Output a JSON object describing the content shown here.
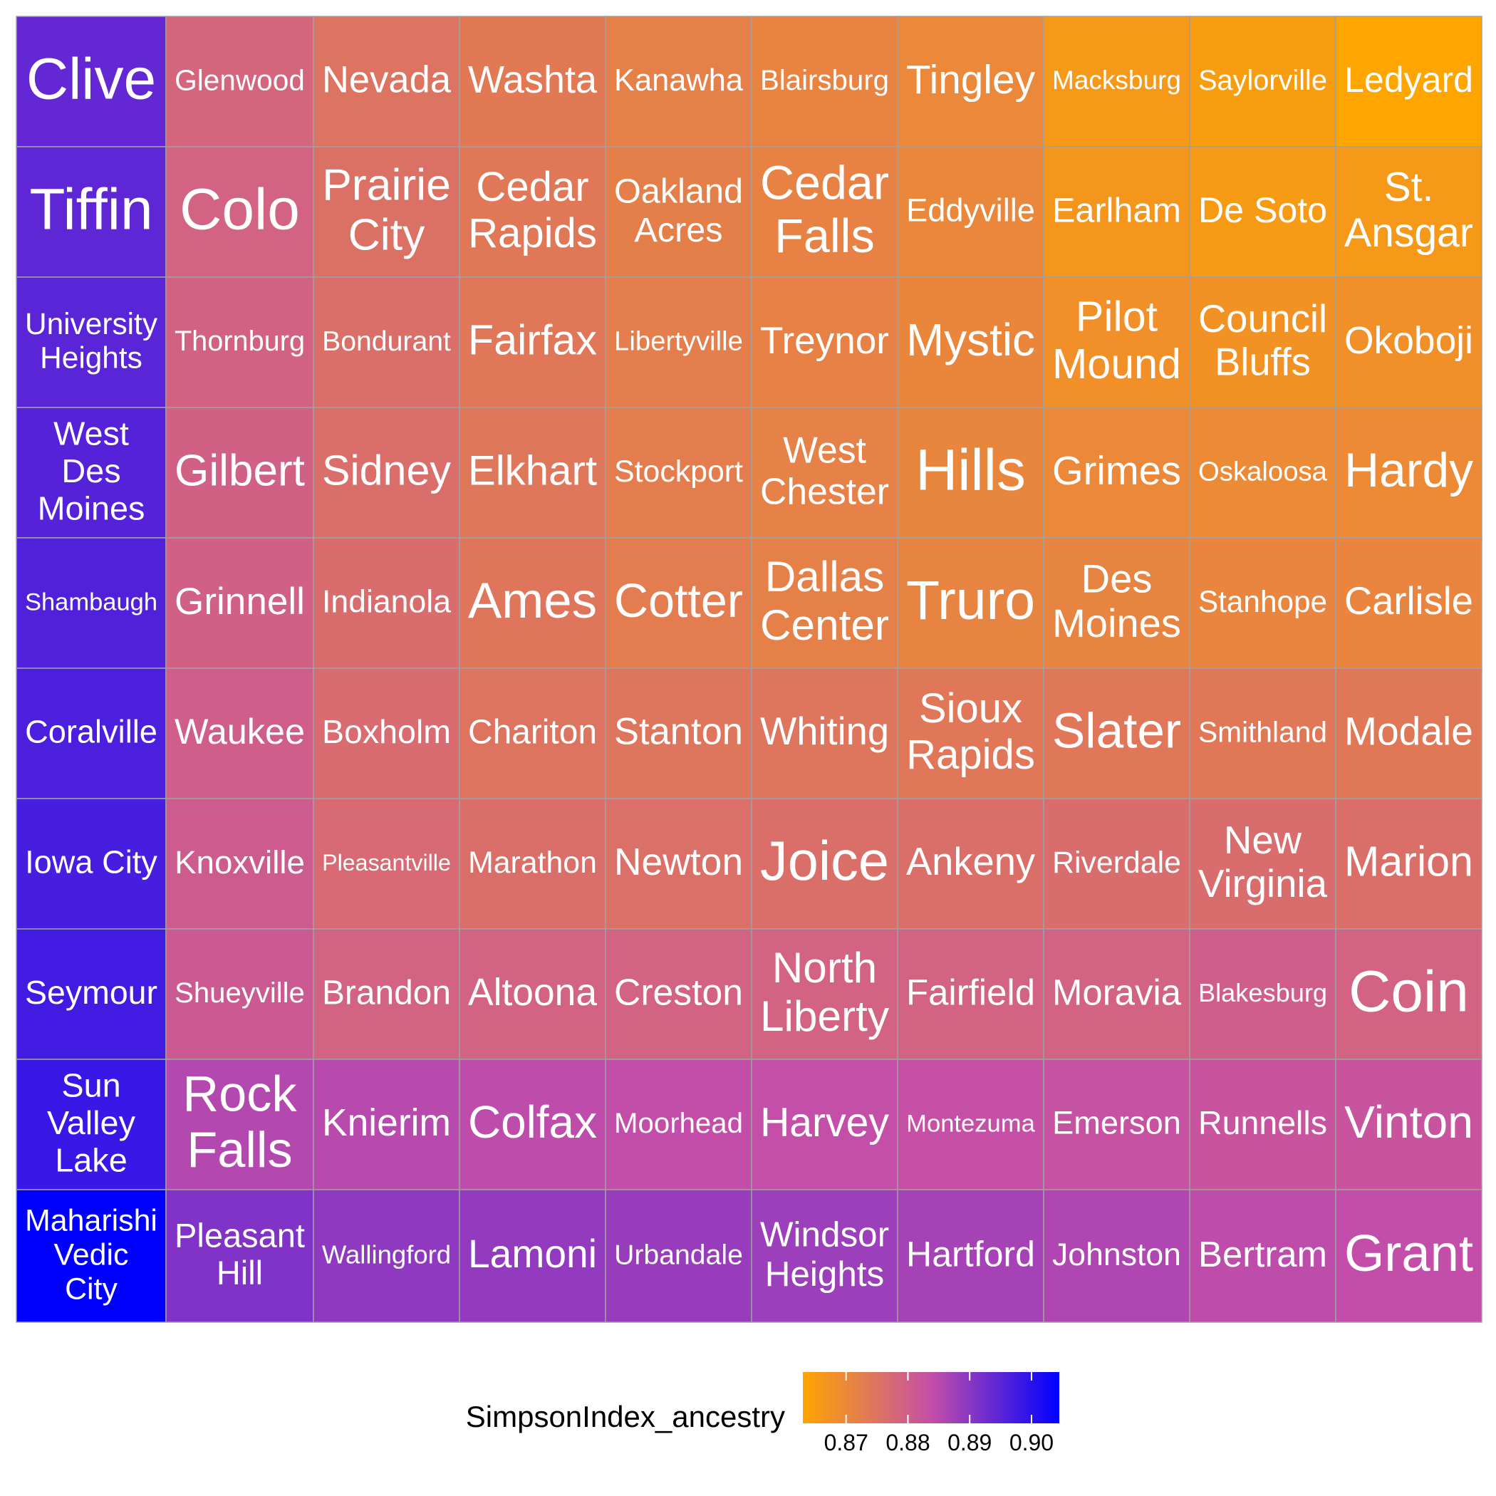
{
  "chart_data": {
    "type": "treemap",
    "legend": {
      "title": "SimpsonIndex_ancestry",
      "ticks": [
        0.87,
        0.88,
        0.89,
        0.9
      ],
      "tick_labels": [
        "0.87",
        "0.88",
        "0.89",
        "0.90"
      ],
      "range": [
        0.863,
        0.9045
      ],
      "colors": {
        "low": "#FFA500",
        "mid": "#C44FA8",
        "high": "#0000FF"
      },
      "placement": "bottom"
    },
    "columns": [
      {
        "cells": [
          {
            "name": "Clive",
            "value": 0.894
          },
          {
            "name": "Tiffin",
            "value": 0.8945
          },
          {
            "name": "University Heights",
            "value": 0.895
          },
          {
            "name": "West Des Moines",
            "value": 0.8955
          },
          {
            "name": "Shambaugh",
            "value": 0.896
          },
          {
            "name": "Coralville",
            "value": 0.8965
          },
          {
            "name": "Iowa City",
            "value": 0.897
          },
          {
            "name": "Seymour",
            "value": 0.8975
          },
          {
            "name": "Sun Valley Lake",
            "value": 0.8985
          },
          {
            "name": "Maharishi Vedic City",
            "value": 0.9045
          }
        ]
      },
      {
        "cells": [
          {
            "name": "Glenwood",
            "value": 0.8785
          },
          {
            "name": "Colo",
            "value": 0.879
          },
          {
            "name": "Thornburg",
            "value": 0.8792
          },
          {
            "name": "Gilbert",
            "value": 0.8794
          },
          {
            "name": "Grinnell",
            "value": 0.8796
          },
          {
            "name": "Waukee",
            "value": 0.88
          },
          {
            "name": "Knoxville",
            "value": 0.8805
          },
          {
            "name": "Shueyville",
            "value": 0.881
          },
          {
            "name": "Rock Falls",
            "value": 0.8855
          },
          {
            "name": "Pleasant Hill",
            "value": 0.891
          }
        ]
      },
      {
        "cells": [
          {
            "name": "Nevada",
            "value": 0.875
          },
          {
            "name": "Prairie City",
            "value": 0.8755
          },
          {
            "name": "Bondurant",
            "value": 0.876
          },
          {
            "name": "Sidney",
            "value": 0.8762
          },
          {
            "name": "Indianola",
            "value": 0.8765
          },
          {
            "name": "Boxholm",
            "value": 0.8768
          },
          {
            "name": "Pleasantville",
            "value": 0.8772
          },
          {
            "name": "Brandon",
            "value": 0.879
          },
          {
            "name": "Knierim",
            "value": 0.885
          },
          {
            "name": "Wallingford",
            "value": 0.8895
          }
        ]
      },
      {
        "cells": [
          {
            "name": "Washta",
            "value": 0.8735
          },
          {
            "name": "Cedar Rapids",
            "value": 0.8738
          },
          {
            "name": "Fairfax",
            "value": 0.874
          },
          {
            "name": "Elkhart",
            "value": 0.8742
          },
          {
            "name": "Ames",
            "value": 0.8744
          },
          {
            "name": "Chariton",
            "value": 0.8748
          },
          {
            "name": "Marathon",
            "value": 0.876
          },
          {
            "name": "Altoona",
            "value": 0.879
          },
          {
            "name": "Colfax",
            "value": 0.8845
          },
          {
            "name": "Lamoni",
            "value": 0.889
          }
        ]
      },
      {
        "cells": [
          {
            "name": "Kanawha",
            "value": 0.872
          },
          {
            "name": "Oakland Acres",
            "value": 0.8722
          },
          {
            "name": "Libertyville",
            "value": 0.8724
          },
          {
            "name": "Stockport",
            "value": 0.8726
          },
          {
            "name": "Cotter",
            "value": 0.8728
          },
          {
            "name": "Stanton",
            "value": 0.8745
          },
          {
            "name": "Newton",
            "value": 0.8758
          },
          {
            "name": "Creston",
            "value": 0.879
          },
          {
            "name": "Moorhead",
            "value": 0.884
          },
          {
            "name": "Urbandale",
            "value": 0.8885
          }
        ]
      },
      {
        "cells": [
          {
            "name": "Blairsburg",
            "value": 0.8712
          },
          {
            "name": "Cedar Falls",
            "value": 0.8714
          },
          {
            "name": "Treynor",
            "value": 0.8716
          },
          {
            "name": "West Chester",
            "value": 0.8718
          },
          {
            "name": "Dallas Center",
            "value": 0.872
          },
          {
            "name": "Whiting",
            "value": 0.8745
          },
          {
            "name": "Joice",
            "value": 0.876
          },
          {
            "name": "North Liberty",
            "value": 0.879
          },
          {
            "name": "Harvey",
            "value": 0.8838
          },
          {
            "name": "Windsor Heights",
            "value": 0.888
          }
        ]
      },
      {
        "cells": [
          {
            "name": "Tingley",
            "value": 0.87
          },
          {
            "name": "Eddyville",
            "value": 0.8702
          },
          {
            "name": "Mystic",
            "value": 0.8704
          },
          {
            "name": "Hills",
            "value": 0.8706
          },
          {
            "name": "Truro",
            "value": 0.871
          },
          {
            "name": "Sioux Rapids",
            "value": 0.874
          },
          {
            "name": "Ankeny",
            "value": 0.876
          },
          {
            "name": "Fairfield",
            "value": 0.879
          },
          {
            "name": "Montezuma",
            "value": 0.8835
          },
          {
            "name": "Hartford",
            "value": 0.887
          }
        ]
      },
      {
        "cells": [
          {
            "name": "Macksburg",
            "value": 0.866
          },
          {
            "name": "Earlham",
            "value": 0.8665
          },
          {
            "name": "Pilot Mound",
            "value": 0.868
          },
          {
            "name": "Grimes",
            "value": 0.87
          },
          {
            "name": "Des Moines",
            "value": 0.871
          },
          {
            "name": "Slater",
            "value": 0.874
          },
          {
            "name": "Riverdale",
            "value": 0.8765
          },
          {
            "name": "Moravia",
            "value": 0.879
          },
          {
            "name": "Emerson",
            "value": 0.883
          },
          {
            "name": "Johnston",
            "value": 0.886
          }
        ]
      },
      {
        "cells": [
          {
            "name": "Saylorville",
            "value": 0.865
          },
          {
            "name": "De Soto",
            "value": 0.8655
          },
          {
            "name": "Council Bluffs",
            "value": 0.8675
          },
          {
            "name": "Oskaloosa",
            "value": 0.8695
          },
          {
            "name": "Stanhope",
            "value": 0.8708
          },
          {
            "name": "Smithland",
            "value": 0.8738
          },
          {
            "name": "New Virginia",
            "value": 0.8765
          },
          {
            "name": "Blakesburg",
            "value": 0.88
          },
          {
            "name": "Runnells",
            "value": 0.8825
          },
          {
            "name": "Bertram",
            "value": 0.8845
          }
        ]
      },
      {
        "cells": [
          {
            "name": "Ledyard",
            "value": 0.863
          },
          {
            "name": "St. Ansgar",
            "value": 0.866
          },
          {
            "name": "Okoboji",
            "value": 0.868
          },
          {
            "name": "Hardy",
            "value": 0.8695
          },
          {
            "name": "Carlisle",
            "value": 0.8708
          },
          {
            "name": "Modale",
            "value": 0.8738
          },
          {
            "name": "Marion",
            "value": 0.876
          },
          {
            "name": "Coin",
            "value": 0.879
          },
          {
            "name": "Vinton",
            "value": 0.8825
          },
          {
            "name": "Grant",
            "value": 0.884
          }
        ]
      }
    ]
  }
}
